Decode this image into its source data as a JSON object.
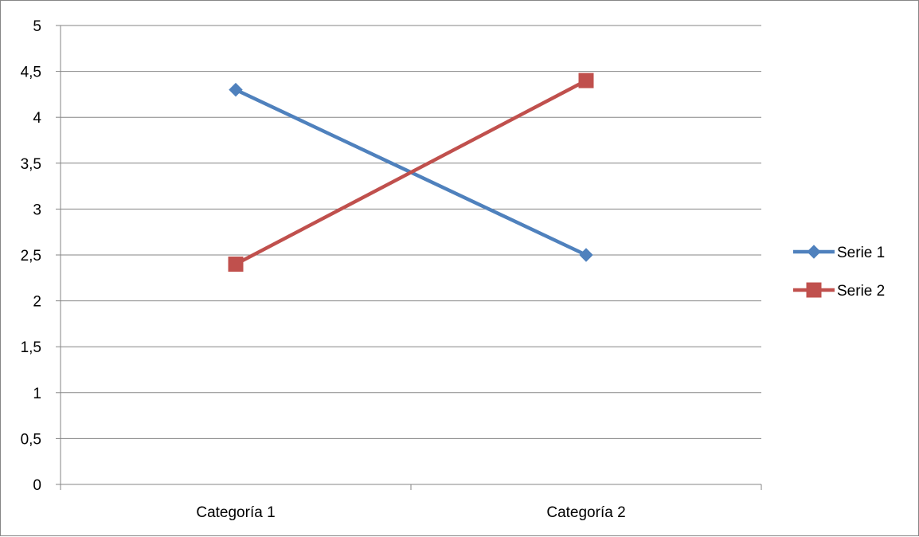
{
  "chart_data": {
    "type": "line",
    "categories": [
      "Categoría 1",
      "Categoría 2"
    ],
    "series": [
      {
        "name": "Serie 1",
        "values": [
          4.3,
          2.5
        ],
        "color": "#4F81BD",
        "marker": "diamond"
      },
      {
        "name": "Serie 2",
        "values": [
          2.4,
          4.4
        ],
        "color": "#C0504D",
        "marker": "square"
      }
    ],
    "y_ticks": [
      "0",
      "0,5",
      "1",
      "1,5",
      "2",
      "2,5",
      "3",
      "3,5",
      "4",
      "4,5",
      "5"
    ],
    "ylim": [
      0,
      5
    ],
    "y_step": 0.5,
    "grid": true,
    "legend_position": "right",
    "title": "",
    "xlabel": "",
    "ylabel": ""
  }
}
